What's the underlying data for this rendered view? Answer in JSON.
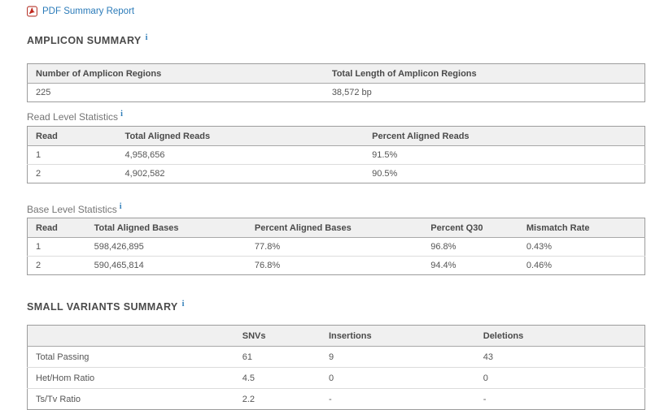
{
  "ui": {
    "info_glyph": "i"
  },
  "pdf_report": {
    "label": "PDF Summary Report"
  },
  "amplicon_summary": {
    "title": "AMPLICON SUMMARY",
    "table": {
      "headers": [
        "Number of Amplicon Regions",
        "Total Length of Amplicon Regions"
      ],
      "rows": [
        [
          "225",
          "38,572 bp"
        ]
      ]
    }
  },
  "read_level_statistics": {
    "title": "Read Level Statistics",
    "table": {
      "headers": [
        "Read",
        "Total Aligned Reads",
        "Percent Aligned Reads"
      ],
      "rows": [
        [
          "1",
          "4,958,656",
          "91.5%"
        ],
        [
          "2",
          "4,902,582",
          "90.5%"
        ]
      ]
    }
  },
  "base_level_statistics": {
    "title": "Base Level Statistics",
    "table": {
      "headers": [
        "Read",
        "Total Aligned Bases",
        "Percent Aligned Bases",
        "Percent Q30",
        "Mismatch Rate"
      ],
      "rows": [
        [
          "1",
          "598,426,895",
          "77.8%",
          "96.8%",
          "0.43%"
        ],
        [
          "2",
          "590,465,814",
          "76.8%",
          "94.4%",
          "0.46%"
        ]
      ]
    }
  },
  "small_variants_summary": {
    "title": "SMALL VARIANTS SUMMARY",
    "table": {
      "headers": [
        "",
        "SNVs",
        "Insertions",
        "Deletions"
      ],
      "rows": [
        [
          "Total Passing",
          "61",
          "9",
          "43"
        ],
        [
          "Het/Hom Ratio",
          "4.5",
          "0",
          "0"
        ],
        [
          "Ts/Tv Ratio",
          "2.2",
          "-",
          "-"
        ]
      ]
    }
  },
  "colors": {
    "link_blue": "#2b7bb9",
    "info_blue": "#2d7cb8",
    "pdf_icon_red": "#c0281e",
    "header_bg": "#f0f0f0",
    "table_border": "#9c9c9c",
    "header_text": "#4a4a4a",
    "body_text": "#555555"
  }
}
